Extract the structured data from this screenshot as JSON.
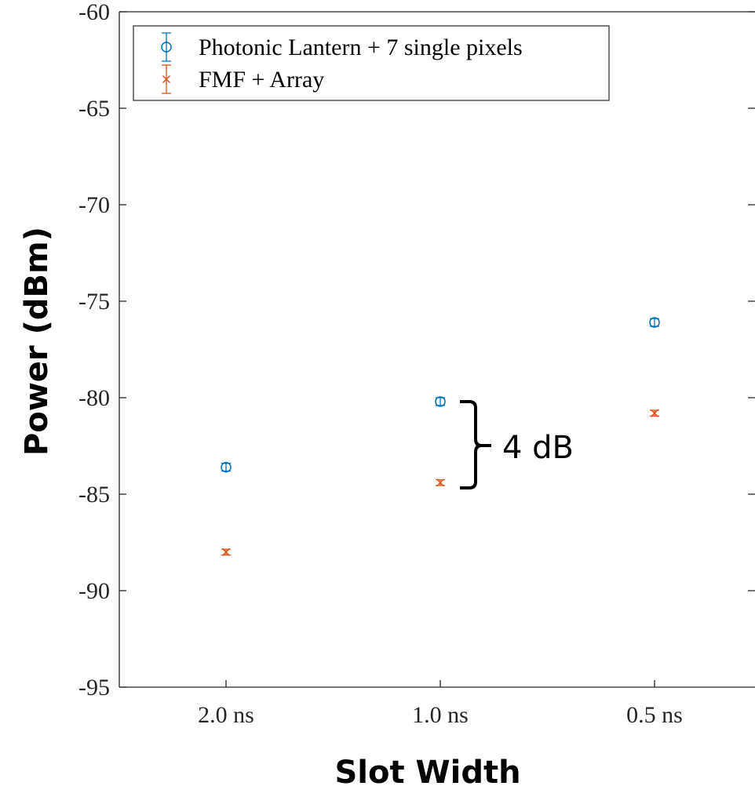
{
  "chart_data": {
    "type": "scatter",
    "title": "",
    "xlabel": "Slot Width",
    "ylabel": "Power (dBm)",
    "categories": [
      "2.0 ns",
      "1.0 ns",
      "0.5 ns"
    ],
    "ylim": [
      -95,
      -60
    ],
    "yticks": [
      -95,
      -90,
      -85,
      -80,
      -75,
      -70,
      -65,
      -60
    ],
    "ytick_labels": [
      "-95",
      "-90",
      "-85",
      "-80",
      "-75",
      "-70",
      "-65",
      "-60"
    ],
    "grid": false,
    "legend_position": "top-left",
    "series": [
      {
        "name": "Photonic Lantern + 7 single pixels",
        "marker": "circle",
        "color": "#0072BD",
        "values": [
          -83.6,
          -80.2,
          -76.1
        ],
        "errors": [
          0.2,
          0.2,
          0.2
        ]
      },
      {
        "name": "FMF + Array",
        "marker": "x",
        "color": "#D95319",
        "values": [
          -88.0,
          -84.4,
          -80.8
        ],
        "errors": [
          0.15,
          0.15,
          0.15
        ]
      }
    ],
    "annotations": [
      {
        "text": "4 dB",
        "category": "1.0 ns",
        "y_from": -84.4,
        "y_to": -80.2
      }
    ]
  }
}
